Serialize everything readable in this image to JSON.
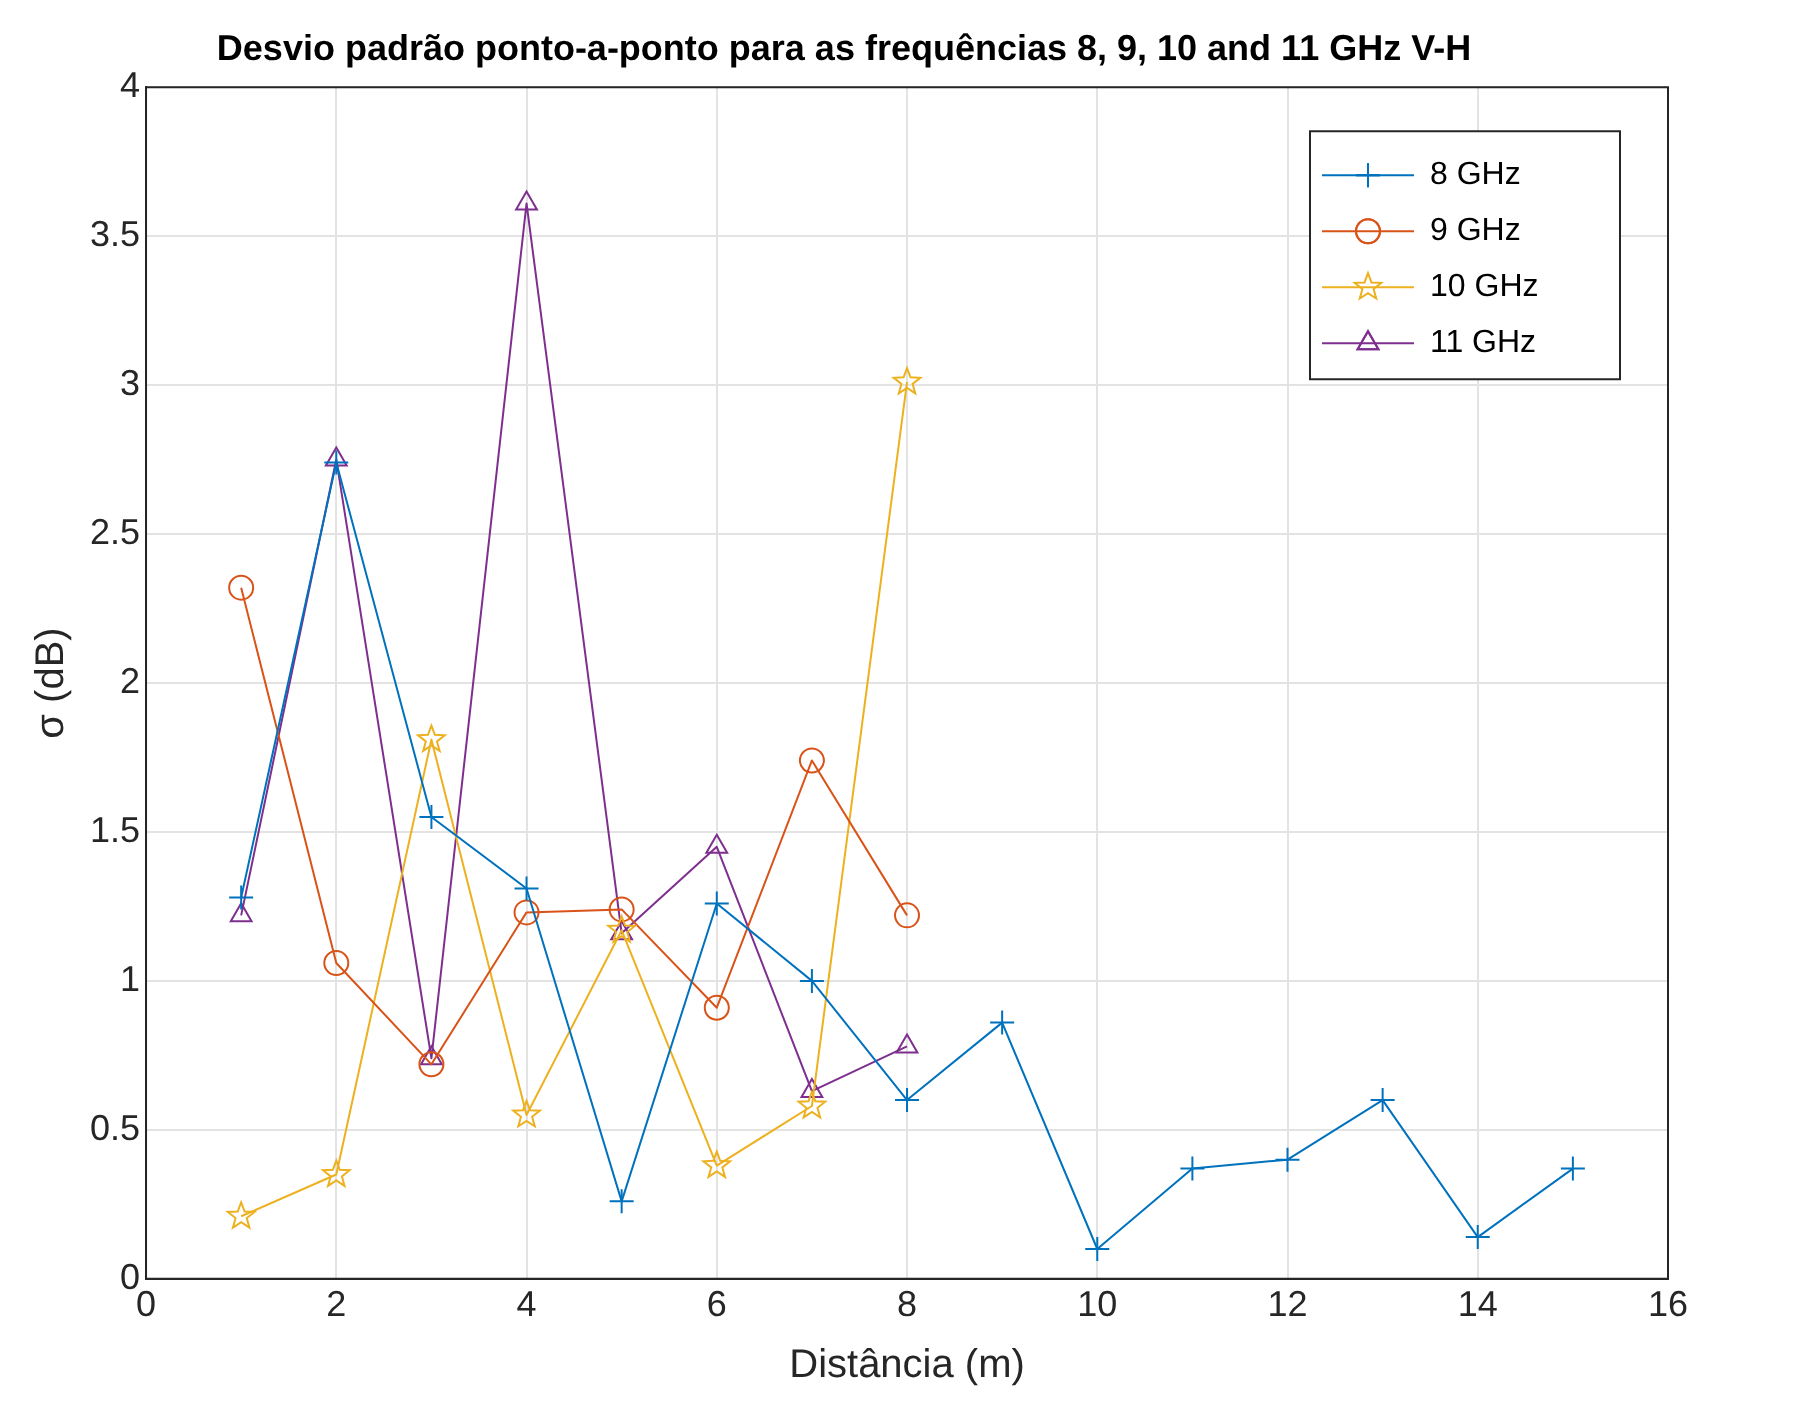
{
  "chart_data": {
    "type": "line",
    "title": "Desvio padrão ponto-a-ponto para as frequências 8, 9, 10 and 11 GHz V-H",
    "xlabel": "Distância (m)",
    "ylabel": "σ (dB)",
    "xlim": [
      0,
      16
    ],
    "xticks": [
      0,
      2,
      4,
      6,
      8,
      10,
      12,
      14,
      16
    ],
    "ylim": [
      0,
      4
    ],
    "yticks": [
      0,
      0.5,
      1,
      1.5,
      2,
      2.5,
      3,
      3.5,
      4
    ],
    "grid": true,
    "legend": "top right",
    "line_style": "solid",
    "series": [
      {
        "name": "8 GHz",
        "color": "#0072bd",
        "marker": "cross",
        "x": [
          1,
          2,
          3,
          4,
          5,
          6,
          7,
          8,
          9,
          10,
          11,
          12,
          13,
          14,
          15
        ],
        "values": [
          1.28,
          2.74,
          1.55,
          1.31,
          0.26,
          1.26,
          1.0,
          0.6,
          0.86,
          0.1,
          0.37,
          0.4,
          0.6,
          0.14,
          0.37
        ]
      },
      {
        "name": "9 GHz",
        "color": "#d95319",
        "marker": "circle",
        "x": [
          1,
          2,
          3,
          4,
          5,
          6,
          7,
          8
        ],
        "values": [
          2.32,
          1.06,
          0.72,
          1.23,
          1.24,
          0.91,
          1.74,
          1.22
        ]
      },
      {
        "name": "10 GHz",
        "color": "#edb120",
        "marker": "star",
        "x": [
          1,
          2,
          3,
          4,
          5,
          6,
          7,
          8
        ],
        "values": [
          0.21,
          0.35,
          1.81,
          0.55,
          1.17,
          0.38,
          0.58,
          3.01
        ]
      },
      {
        "name": "11 GHz",
        "color": "#7e2f8e",
        "marker": "triangle",
        "x": [
          1,
          2,
          3,
          4,
          5,
          6,
          7,
          8
        ],
        "values": [
          1.22,
          2.75,
          0.74,
          3.61,
          1.16,
          1.45,
          0.63,
          0.78
        ]
      }
    ]
  }
}
